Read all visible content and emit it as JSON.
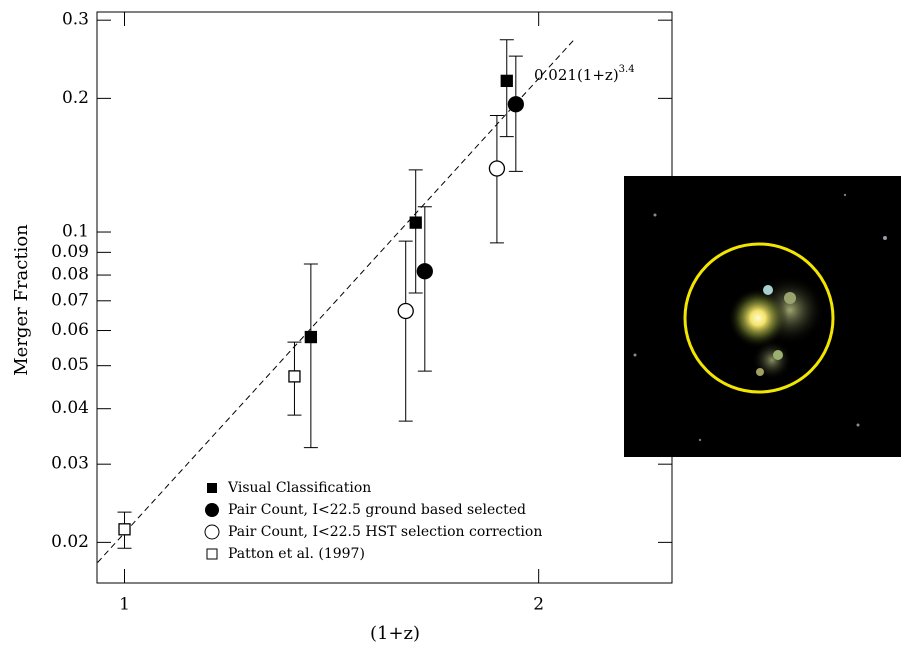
{
  "chart_data": {
    "type": "scatter",
    "x_label": "(1+z)",
    "y_label": "Merger Fraction",
    "log_x": true,
    "log_y": true,
    "xlim": [
      0.955,
      2.5
    ],
    "ylim": [
      0.0162,
      0.313
    ],
    "xticks": [
      1,
      2
    ],
    "yticks": [
      0.02,
      0.03,
      0.04,
      0.05,
      0.06,
      0.07,
      0.08,
      0.09,
      0.1,
      0.2,
      0.3
    ],
    "fit": {
      "coefficient": 0.021,
      "base": "(1+z)",
      "exponent": 3.4,
      "x_range": [
        0.956,
        2.12
      ]
    },
    "series": [
      {
        "name": "Visual Classification",
        "marker": "filled-square",
        "color": "#000000",
        "x": [
          1.366,
          1.628,
          1.896
        ],
        "y": [
          0.058,
          0.105,
          0.219
        ],
        "y_low": [
          0.0327,
          0.0729,
          0.164
        ],
        "y_high": [
          0.0847,
          0.138,
          0.271
        ]
      },
      {
        "name": "Pair Count, I<22.5 ground based selected",
        "marker": "filled-circle",
        "color": "#000000",
        "x": [
          1.653,
          1.925
        ],
        "y": [
          0.0816,
          0.194
        ],
        "y_low": [
          0.0486,
          0.137
        ],
        "y_high": [
          0.114,
          0.249
        ]
      },
      {
        "name": "Pair Count, I<22.5 HST selection correction",
        "marker": "open-circle",
        "color": "#000000",
        "x": [
          1.601,
          1.865
        ],
        "y": [
          0.0664,
          0.139
        ],
        "y_low": [
          0.0375,
          0.0945
        ],
        "y_high": [
          0.0954,
          0.183
        ]
      },
      {
        "name": "Patton et al. (1997)",
        "marker": "open-square",
        "color": "#000000",
        "x": [
          1.0,
          1.329
        ],
        "y": [
          0.0214,
          0.0473
        ],
        "y_low": [
          0.0194,
          0.0387
        ],
        "y_high": [
          0.0234,
          0.0565
        ]
      }
    ]
  }
}
